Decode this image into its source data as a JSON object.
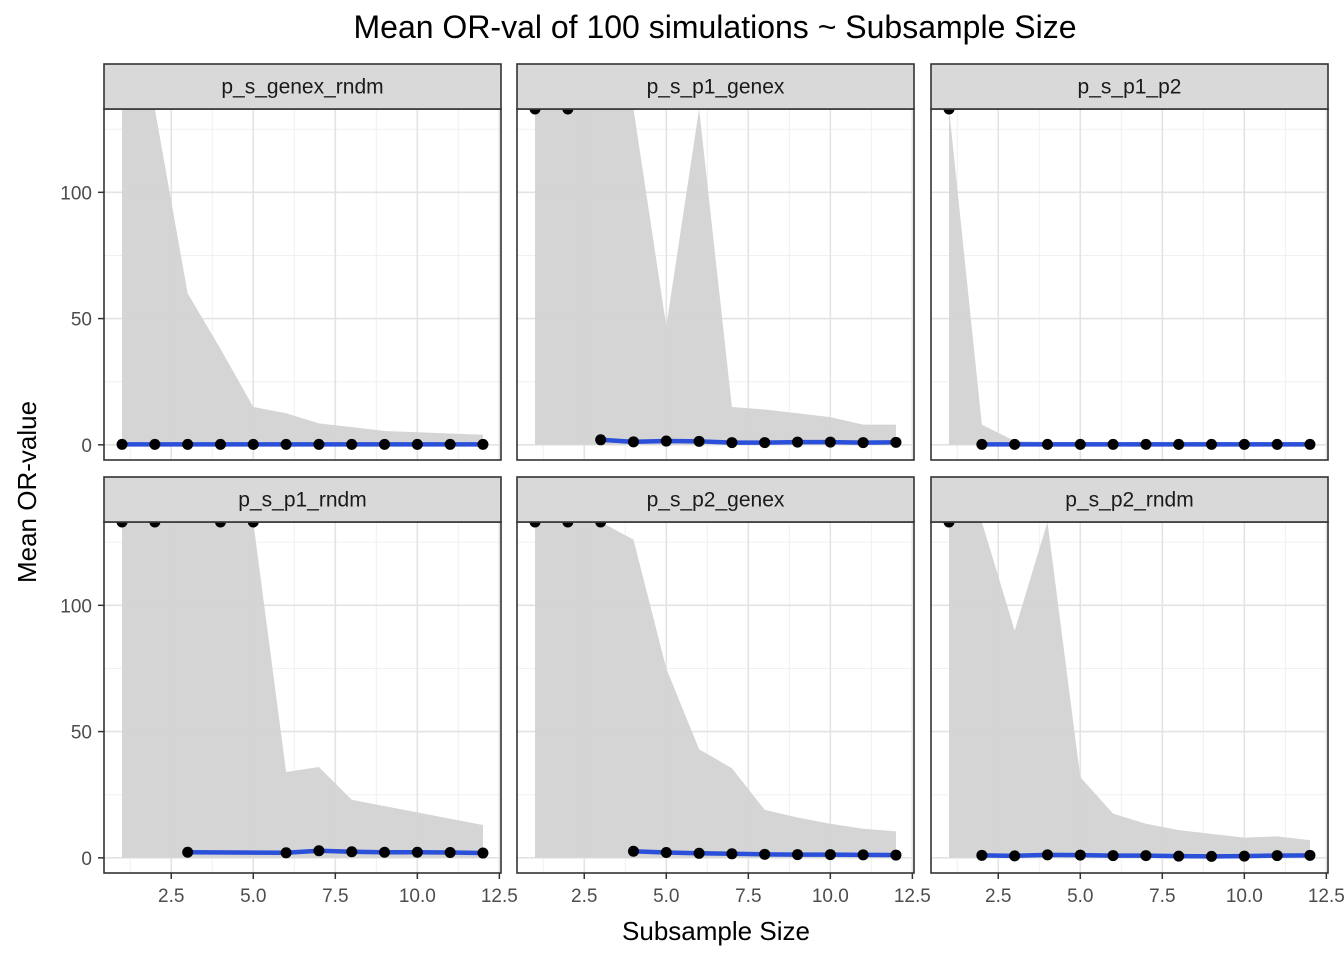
{
  "chart_data": {
    "type": "line",
    "title": "Mean OR-val of 100 simulations ~ Subsample Size",
    "xlabel": "Subsample Size",
    "ylabel": "Mean OR-value",
    "xlim": [
      0.45,
      12.55
    ],
    "ylim": [
      -6,
      133
    ],
    "x_ticks": [
      2.5,
      5.0,
      7.5,
      10.0,
      12.5
    ],
    "x_tick_labels": [
      "2.5",
      "5.0",
      "7.5",
      "10.0",
      "12.5"
    ],
    "y_ticks": [
      0,
      50,
      100
    ],
    "y_tick_labels": [
      "0",
      "50",
      "100"
    ],
    "grid": true,
    "band_color": "#d3d3d3",
    "line_color": "#2a4fd8",
    "point_color": "#000000",
    "panels": [
      {
        "name": "p_s_genex_rndm",
        "x": [
          1,
          2,
          3,
          4,
          5,
          6,
          7,
          8,
          9,
          10,
          11,
          12
        ],
        "y": [
          0.2,
          0.2,
          0.2,
          0.2,
          0.2,
          0.2,
          0.2,
          0.2,
          0.2,
          0.2,
          0.2,
          0.2
        ],
        "band_x": [
          1,
          2,
          3,
          4,
          5,
          6,
          7,
          8,
          9,
          10,
          11,
          12
        ],
        "band_low": [
          0,
          0,
          0,
          0,
          0,
          0,
          0,
          0,
          0,
          0,
          0,
          0
        ],
        "band_high": [
          133,
          133,
          60,
          38,
          15,
          12.5,
          8.5,
          7,
          5.5,
          5,
          4.5,
          4
        ]
      },
      {
        "name": "p_s_p1_genex",
        "x": [
          1,
          2,
          3,
          4,
          5,
          6,
          7,
          8,
          9,
          10,
          11,
          12
        ],
        "y": [
          133,
          133,
          2,
          1.2,
          1.5,
          1.4,
          0.9,
          0.9,
          1.1,
          1.1,
          0.9,
          1.0
        ],
        "band_x": [
          1,
          2,
          3,
          4,
          5,
          6,
          7,
          8,
          9,
          10,
          11,
          12
        ],
        "band_low": [
          0,
          0,
          0,
          0,
          0,
          0,
          0,
          0,
          0,
          0,
          0,
          0
        ],
        "band_high": [
          133,
          133,
          133,
          133,
          47,
          133,
          15,
          14,
          12.5,
          11,
          8,
          8
        ]
      },
      {
        "name": "p_s_p1_p2",
        "x": [
          1,
          2,
          3,
          4,
          5,
          6,
          7,
          8,
          9,
          10,
          11,
          12
        ],
        "y": [
          133,
          0.2,
          0.2,
          0.2,
          0.2,
          0.2,
          0.2,
          0.2,
          0.2,
          0.2,
          0.2,
          0.2
        ],
        "band_x": [
          1,
          2,
          3,
          4,
          5,
          6,
          7,
          8,
          9,
          10,
          11,
          12
        ],
        "band_low": [
          0,
          0,
          0,
          0,
          0,
          0,
          0,
          0,
          0,
          0,
          0,
          0
        ],
        "band_high": [
          133,
          8,
          1.5,
          1.2,
          1.2,
          1.2,
          1.2,
          1.2,
          1.2,
          1.2,
          1.2,
          1.2
        ]
      },
      {
        "name": "p_s_p1_rndm",
        "x": [
          1,
          2,
          3,
          4,
          5,
          6,
          7,
          8,
          9,
          10,
          11,
          12
        ],
        "y": [
          133,
          133,
          2.2,
          133,
          133,
          2.0,
          2.8,
          2.4,
          2.2,
          2.2,
          2.1,
          1.9
        ],
        "band_x": [
          1,
          2,
          3,
          4,
          5,
          6,
          7,
          8,
          9,
          10,
          11,
          12
        ],
        "band_low": [
          0,
          0,
          0,
          0,
          0,
          0,
          0,
          0,
          0,
          0,
          0,
          0
        ],
        "band_high": [
          133,
          133,
          133,
          133,
          133,
          34,
          36,
          23,
          20.5,
          18,
          15.5,
          13
        ]
      },
      {
        "name": "p_s_p2_genex",
        "x": [
          1,
          2,
          3,
          4,
          5,
          6,
          7,
          8,
          9,
          10,
          11,
          12
        ],
        "y": [
          133,
          133,
          133,
          2.6,
          2.1,
          1.8,
          1.6,
          1.4,
          1.3,
          1.3,
          1.2,
          1.1
        ],
        "band_x": [
          1,
          2,
          3,
          4,
          5,
          6,
          7,
          8,
          9,
          10,
          11,
          12
        ],
        "band_low": [
          0,
          0,
          0,
          0,
          0,
          0,
          0,
          0,
          0,
          0,
          0,
          0
        ],
        "band_high": [
          133,
          133,
          133,
          126,
          75,
          43,
          35.5,
          19,
          16,
          13.5,
          11.5,
          10.5
        ]
      },
      {
        "name": "p_s_p2_rndm",
        "x": [
          1,
          2,
          3,
          4,
          5,
          6,
          7,
          8,
          9,
          10,
          11,
          12
        ],
        "y": [
          133,
          1.0,
          0.8,
          1.2,
          1.1,
          0.9,
          0.9,
          0.7,
          0.6,
          0.7,
          0.9,
          1.0
        ],
        "band_x": [
          1,
          2,
          3,
          4,
          5,
          6,
          7,
          8,
          9,
          10,
          11,
          12
        ],
        "band_low": [
          0,
          0,
          0,
          0,
          0,
          0,
          0,
          0,
          0,
          0,
          0,
          0
        ],
        "band_high": [
          133,
          133,
          90,
          133,
          32,
          17.5,
          13.5,
          11,
          9.5,
          8,
          8.5,
          7
        ]
      }
    ]
  }
}
